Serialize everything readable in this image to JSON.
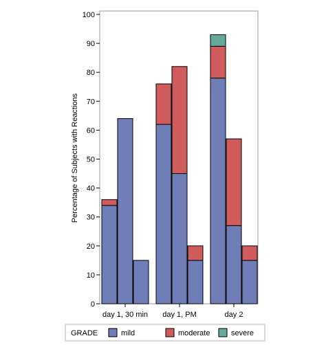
{
  "chart_data": {
    "type": "bar",
    "stacked": true,
    "ylabel": "Percentage of Subjects with Reactions",
    "xlabel": "",
    "ylim": [
      0,
      100
    ],
    "yticks": [
      0,
      10,
      20,
      30,
      40,
      50,
      60,
      70,
      80,
      90,
      100
    ],
    "grid": false,
    "legend": {
      "title": "GRADE",
      "placement": "bottom",
      "entries": [
        {
          "name": "mild",
          "color": "#6f7eb7"
        },
        {
          "name": "moderate",
          "color": "#d05c5c"
        },
        {
          "name": "severe",
          "color": "#66aa9e"
        }
      ]
    },
    "groups": [
      {
        "label": "day 1, 30 min",
        "bars": [
          {
            "mild": 34,
            "moderate": 2,
            "severe": 0
          },
          {
            "mild": 64,
            "moderate": 0,
            "severe": 0
          },
          {
            "mild": 15,
            "moderate": 0,
            "severe": 0
          }
        ]
      },
      {
        "label": "day 1, PM",
        "bars": [
          {
            "mild": 62,
            "moderate": 14,
            "severe": 0
          },
          {
            "mild": 45,
            "moderate": 37,
            "severe": 0
          },
          {
            "mild": 15,
            "moderate": 5,
            "severe": 0
          }
        ]
      },
      {
        "label": "day 2",
        "bars": [
          {
            "mild": 78,
            "moderate": 11,
            "severe": 4
          },
          {
            "mild": 27,
            "moderate": 30,
            "severe": 0
          },
          {
            "mild": 15,
            "moderate": 5,
            "severe": 0
          }
        ]
      }
    ]
  }
}
